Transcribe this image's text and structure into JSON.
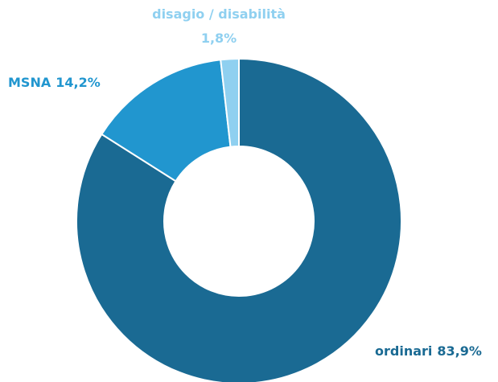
{
  "chart_data": {
    "type": "donut",
    "categories": [
      "ordinari",
      "MSNA",
      "disagio / disabilità"
    ],
    "values": [
      83.9,
      14.2,
      1.8
    ],
    "value_labels": [
      "83,9%",
      "14,2%",
      "1,8%"
    ],
    "colors": [
      "#1a6a93",
      "#2196cf",
      "#8fd0f0"
    ]
  }
}
